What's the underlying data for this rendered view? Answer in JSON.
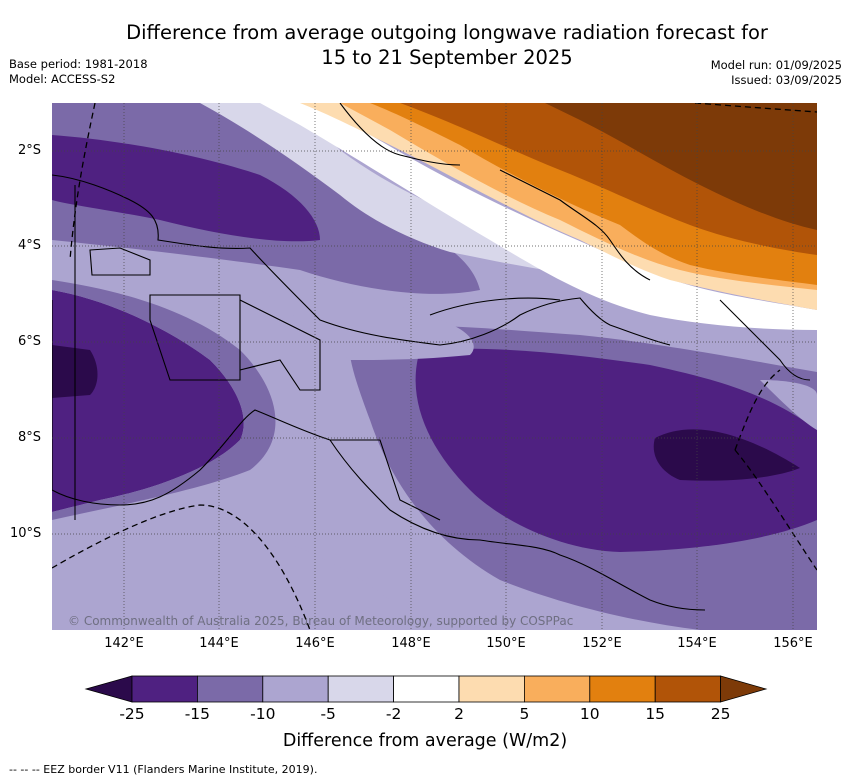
{
  "title_line1": "Difference from average outgoing longwave radiation forecast for",
  "title_line2": "15 to 21 September 2025",
  "base_period": "Base period: 1981-2018",
  "model": "Model: ACCESS-S2",
  "model_run": "Model run: 01/09/2025",
  "issued": "Issued: 03/09/2025",
  "lat_labels": [
    "2°S",
    "4°S",
    "6°S",
    "8°S",
    "10°S"
  ],
  "lon_labels": [
    "142°E",
    "144°E",
    "146°E",
    "148°E",
    "150°E",
    "152°E",
    "154°E",
    "156°E"
  ],
  "copyright": "© Commonwealth of Australia 2025, Bureau of Meteorology, supported by COSPPac",
  "colorbar": {
    "ticks": [
      "-25",
      "-15",
      "-10",
      "-5",
      "-2",
      "2",
      "5",
      "10",
      "15",
      "25"
    ],
    "colors": [
      "#2b0a4b",
      "#4f2181",
      "#7b6aa8",
      "#aca5d0",
      "#d8d7ea",
      "#ffffff",
      "#fddcb0",
      "#f9ae5c",
      "#e2800f",
      "#b15408",
      "#7d3a08"
    ],
    "label": "Difference from average (W/m2)"
  },
  "footnote": "-- -- -- EEZ border V11 (Flanders Marine Institute, 2019)."
}
